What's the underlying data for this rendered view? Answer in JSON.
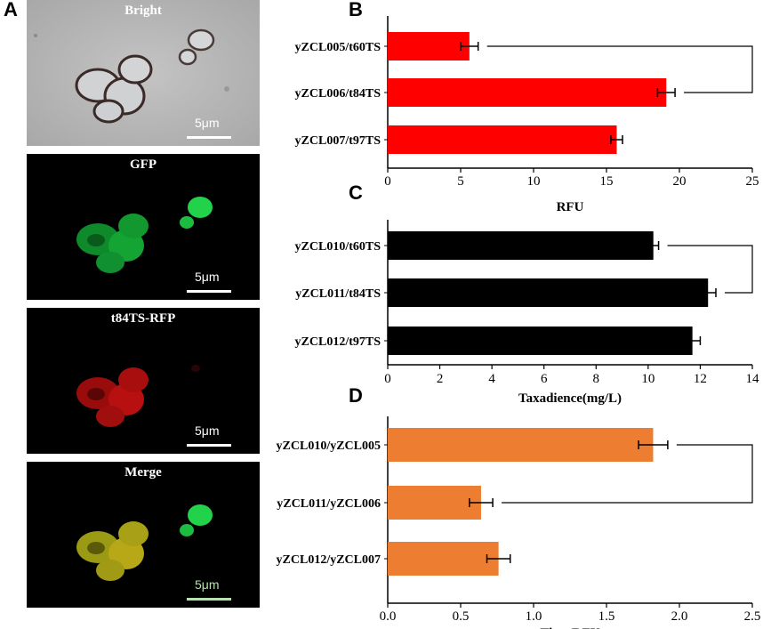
{
  "panels": {
    "A": "A",
    "B": "B",
    "C": "C",
    "D": "D"
  },
  "micrographs": [
    {
      "title": "Bright",
      "scale": "5μm",
      "bg": "#b4b4b4",
      "scale_color": "#ffffff"
    },
    {
      "title": "GFP",
      "scale": "5μm",
      "bg": "#000000",
      "scale_color": "#ffffff"
    },
    {
      "title": "t84TS-RFP",
      "scale": "5μm",
      "bg": "#000000",
      "scale_color": "#ffffff"
    },
    {
      "title": "Merge",
      "scale": "5μm",
      "bg": "#000000",
      "scale_color": "#b8e0b0"
    }
  ],
  "chart_data": [
    {
      "panel": "B",
      "type": "bar",
      "orientation": "horizontal",
      "categories": [
        "yZCL005/t60TS",
        "yZCL006/t84TS",
        "yZCL007/t97TS"
      ],
      "values": [
        5.6,
        19.1,
        15.7
      ],
      "errors": [
        0.6,
        0.6,
        0.4
      ],
      "xlabel": "RFU",
      "xlim": [
        0,
        25
      ],
      "ticks": [
        0,
        5,
        10,
        15,
        20,
        25
      ],
      "tick_labels": [
        "0",
        "5",
        "10",
        "15",
        "20",
        "25"
      ],
      "color": "#ff0000",
      "significance": {
        "between": [
          0,
          1
        ],
        "label": "**"
      }
    },
    {
      "panel": "C",
      "type": "bar",
      "orientation": "horizontal",
      "categories": [
        "yZCL010/t60TS",
        "yZCL011/t84TS",
        "yZCL012/t97TS"
      ],
      "values": [
        10.2,
        12.3,
        11.7
      ],
      "errors": [
        0.2,
        0.3,
        0.3
      ],
      "xlabel": "Taxadience(mg/L)",
      "xlim": [
        0,
        14
      ],
      "ticks": [
        0,
        2,
        4,
        6,
        8,
        10,
        12,
        14
      ],
      "tick_labels": [
        "0",
        "2",
        "4",
        "6",
        "8",
        "10",
        "12",
        "14"
      ],
      "color": "#000000",
      "significance": {
        "between": [
          0,
          1
        ],
        "label": "*"
      }
    },
    {
      "panel": "D",
      "type": "bar",
      "orientation": "horizontal",
      "categories": [
        "yZCL010/yZCL005",
        "yZCL011/yZCL006",
        "yZCL012/yZCL007"
      ],
      "values": [
        1.82,
        0.64,
        0.76
      ],
      "errors": [
        0.1,
        0.08,
        0.08
      ],
      "xlabel": "Titer/RFU",
      "xlim": [
        0,
        2.5
      ],
      "ticks": [
        0,
        0.5,
        1.0,
        1.5,
        2.0,
        2.5
      ],
      "tick_labels": [
        "0.0",
        "0.5",
        "1.0",
        "1.5",
        "2.0",
        "2.5"
      ],
      "color": "#ed7d31",
      "significance": {
        "between": [
          0,
          1
        ],
        "label": "**"
      }
    }
  ]
}
